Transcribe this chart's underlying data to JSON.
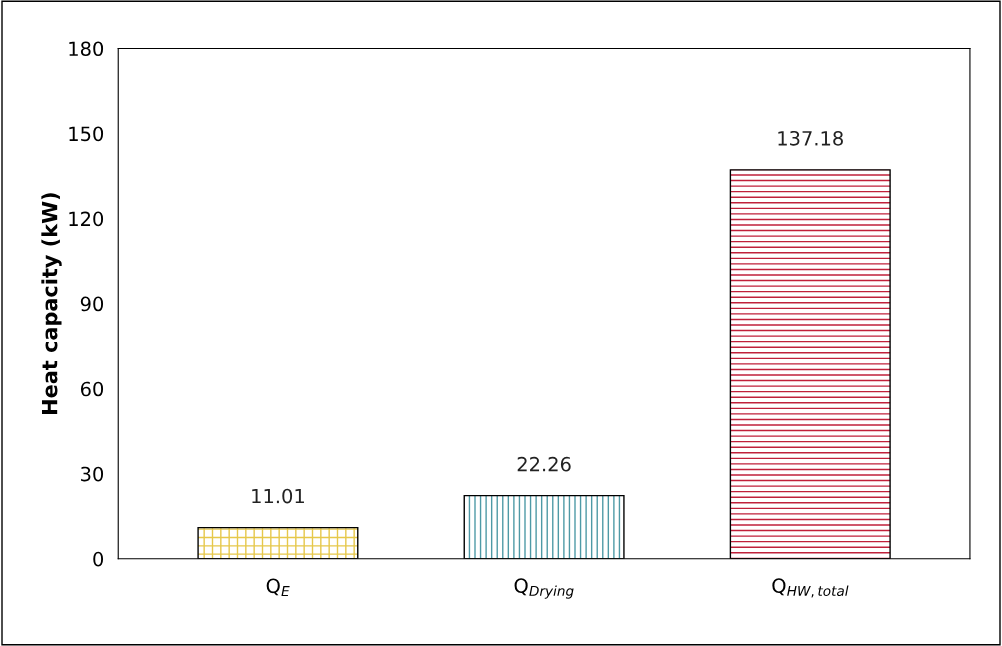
{
  "chart_data": {
    "type": "bar",
    "ylabel": "Heat capacity (kW)",
    "categories": [
      "Q$_{E}$",
      "Q$_{Drying}$",
      "Q$_{HW,total}$"
    ],
    "values": [
      11.01,
      22.26,
      137.18
    ],
    "colors": [
      "#e6c84a",
      "#4e9aa6",
      "#c0203a"
    ],
    "ylim": [
      0,
      180
    ],
    "yticks": [
      0,
      30,
      60,
      90,
      120,
      150,
      180
    ],
    "data_labels": true,
    "grid": false,
    "legend": false
  }
}
